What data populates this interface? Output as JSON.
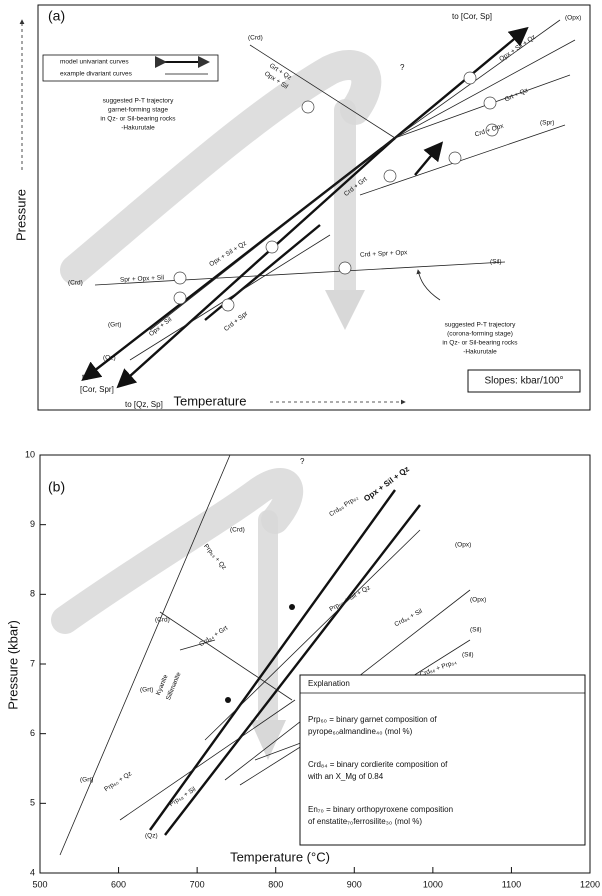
{
  "panel_a": {
    "label": "(a)",
    "x_axis": "Temperature",
    "y_axis": "Pressure",
    "legend": [
      "model univariant curves",
      "example divariant curves"
    ],
    "slopes": "Slopes: kbar/100°",
    "arrow_labels": [
      "to [Cor, Sp]",
      "to",
      "[Cor, Spr]",
      "to [Qz, Sp]"
    ],
    "question": "?",
    "trajectory_garnet": [
      "suggested P-T trajectory",
      "garnet-forming stage",
      "in Qz- or Sil-bearing rocks",
      "-Hakurutale"
    ],
    "trajectory_corona": [
      "suggested P-T trajectory",
      "(corona-forming stage)",
      "in Qz- or Sil-bearing rocks",
      "-Hakurutale"
    ],
    "phase_labels": [
      "(Crd)",
      "(Opx)",
      "(Crd)",
      "(Grt)",
      "(Spr)",
      "(Sil)",
      "(Qz)"
    ],
    "reaction_labels": [
      "Grt + Qz",
      "Opx + Sil",
      "Opx + Sil + Qz",
      "Grt + Qz",
      "Crd + Opx",
      "Crd + Spr + Opx",
      "Spr + Opx + Sil",
      "Opx + Sil + Qz",
      "Opx + Sil",
      "Crd + Spr",
      "Crd + Grt"
    ]
  },
  "panel_b": {
    "label": "(b)",
    "x_axis": "Temperature (°C)",
    "y_axis": "Pressure (kbar)",
    "xlim": [
      500,
      1200
    ],
    "xticks": [
      500,
      600,
      700,
      800,
      900,
      1000,
      1100,
      1200
    ],
    "ylim": [
      4,
      10
    ],
    "yticks": [
      4,
      5,
      6,
      7,
      8,
      9,
      10
    ],
    "question": "?",
    "phase_labels": [
      "(Grt)",
      "(Qz)",
      "(Grt)",
      "(Crd)",
      "(Crd)",
      "(Opx)",
      "(Opx)",
      "(Sil)",
      "(Sil)"
    ],
    "field_labels": [
      "Kyanite",
      "Sillimanite"
    ],
    "reaction_labels": [
      "Prp₆₀ + Qz",
      "Prp₅₈ + Sil",
      "Crd₈₄ + Grt",
      "Crd₈₆ Prp₆₂",
      "Prp₆₀ + Sil + Qz",
      "Crd₈₄ + Sil",
      "Crd₈₆ + Prp₅₄",
      "Prp₆₃ + Qz",
      "Opx + Sil + Qz"
    ],
    "explanation": {
      "title": "Explanation",
      "items": [
        [
          "Prp₆₀ = binary garnet composition of",
          "pyrope₆₀almandine₄₀ (mol %)"
        ],
        [
          "Crd₈₄ = binary cordierite composition of",
          "with an X_Mg of 0.84"
        ],
        [
          "En₇₀ = binary orthopyroxene composition",
          "of enstatite₇₀ferrosilite₃₀ (mol %)"
        ]
      ]
    }
  }
}
